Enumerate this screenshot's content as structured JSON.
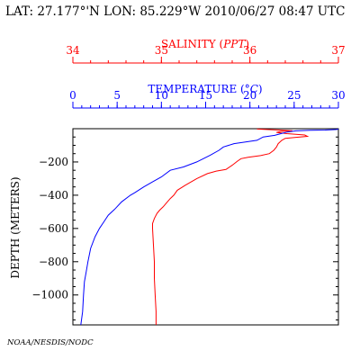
{
  "header": {
    "location_text": "LAT: 27.177°'N LON: 85.229°W 2010/06/27 08:47 UTC"
  },
  "footer": {
    "credit": "NOAA/NESDIS/NODC"
  },
  "colors": {
    "salinity": "#ff0000",
    "temperature": "#0000ff",
    "axis": "#000000"
  },
  "chart_data": {
    "type": "line",
    "title": "",
    "ylabel": "DEPTH (METERS)",
    "ylim": [
      -1180,
      0
    ],
    "yticks": [
      -200,
      -400,
      -600,
      -800,
      -1000
    ],
    "grid": false,
    "salinity_axis": {
      "label_prefix": "SALINITY (",
      "label_unit": "PPT",
      "label_suffix": ")",
      "range": [
        34,
        37
      ],
      "ticks": [
        34,
        35,
        36,
        37
      ],
      "position": "top"
    },
    "temperature_axis": {
      "label_prefix": "TEMPERATURE (",
      "label_unit": "°C",
      "label_suffix": ")",
      "range": [
        0,
        30
      ],
      "ticks": [
        0,
        5,
        10,
        15,
        20,
        25,
        30
      ],
      "position": "top"
    },
    "series": [
      {
        "name": "",
        "quantity": "salinity",
        "color": "#ff0000",
        "points": [
          [
            36.08,
            -2
          ],
          [
            36.33,
            -8
          ],
          [
            36.48,
            -12
          ],
          [
            36.35,
            -16
          ],
          [
            36.3,
            -22
          ],
          [
            36.42,
            -30
          ],
          [
            36.62,
            -38
          ],
          [
            36.65,
            -46
          ],
          [
            36.52,
            -52
          ],
          [
            36.4,
            -58
          ],
          [
            36.36,
            -70
          ],
          [
            36.32,
            -90
          ],
          [
            36.3,
            -110
          ],
          [
            36.27,
            -130
          ],
          [
            36.22,
            -150
          ],
          [
            36.12,
            -162
          ],
          [
            35.98,
            -172
          ],
          [
            35.9,
            -180
          ],
          [
            35.86,
            -195
          ],
          [
            35.8,
            -220
          ],
          [
            35.73,
            -245
          ],
          [
            35.62,
            -255
          ],
          [
            35.52,
            -270
          ],
          [
            35.4,
            -300
          ],
          [
            35.27,
            -340
          ],
          [
            35.18,
            -370
          ],
          [
            35.14,
            -400
          ],
          [
            35.1,
            -420
          ],
          [
            35.06,
            -445
          ],
          [
            35.02,
            -470
          ],
          [
            34.98,
            -490
          ],
          [
            34.95,
            -510
          ],
          [
            34.92,
            -540
          ],
          [
            34.9,
            -570
          ],
          [
            34.9,
            -600
          ],
          [
            34.91,
            -700
          ],
          [
            34.92,
            -800
          ],
          [
            34.92,
            -900
          ],
          [
            34.93,
            -1000
          ],
          [
            34.94,
            -1100
          ],
          [
            34.94,
            -1180
          ]
        ]
      },
      {
        "name": "",
        "quantity": "temperature",
        "color": "#0000ff",
        "points": [
          [
            30.0,
            -2
          ],
          [
            29.8,
            -5
          ],
          [
            28.5,
            -8
          ],
          [
            26.8,
            -10
          ],
          [
            25.2,
            -13
          ],
          [
            24.2,
            -20
          ],
          [
            23.5,
            -30
          ],
          [
            22.8,
            -40
          ],
          [
            21.5,
            -50
          ],
          [
            20.8,
            -70
          ],
          [
            19.5,
            -80
          ],
          [
            18.2,
            -90
          ],
          [
            17.0,
            -110
          ],
          [
            16.5,
            -130
          ],
          [
            15.5,
            -160
          ],
          [
            14.0,
            -200
          ],
          [
            12.5,
            -230
          ],
          [
            11.0,
            -250
          ],
          [
            10.0,
            -290
          ],
          [
            9.0,
            -320
          ],
          [
            8.0,
            -350
          ],
          [
            7.0,
            -385
          ],
          [
            6.5,
            -400
          ],
          [
            5.5,
            -440
          ],
          [
            4.8,
            -480
          ],
          [
            4.0,
            -520
          ],
          [
            3.5,
            -560
          ],
          [
            3.0,
            -600
          ],
          [
            2.5,
            -650
          ],
          [
            2.0,
            -720
          ],
          [
            1.7,
            -800
          ],
          [
            1.5,
            -860
          ],
          [
            1.3,
            -920
          ],
          [
            1.2,
            -1000
          ],
          [
            1.1,
            -1100
          ],
          [
            0.9,
            -1180
          ]
        ]
      }
    ]
  }
}
